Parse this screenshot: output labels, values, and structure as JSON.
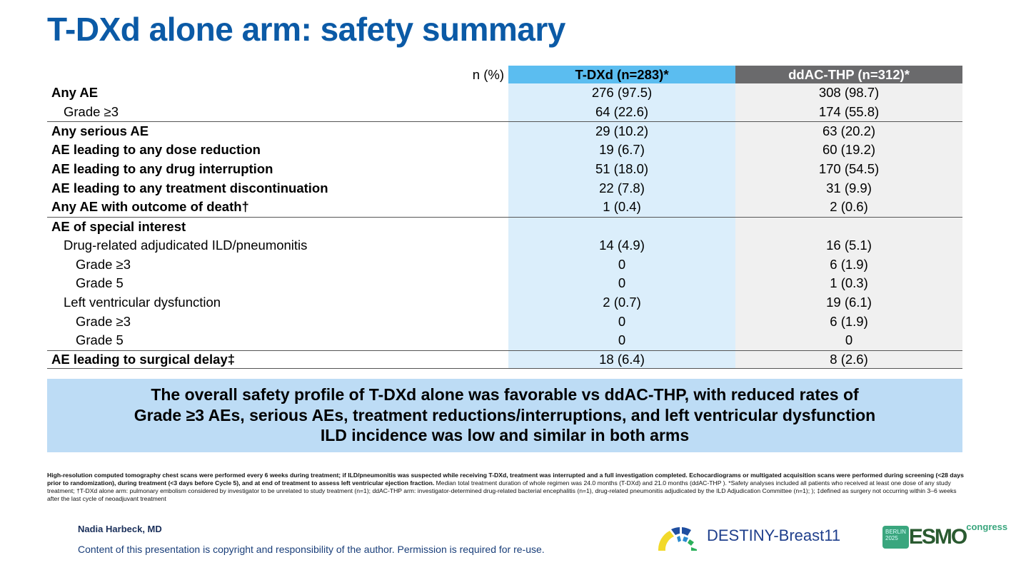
{
  "title": "T-DXd alone arm: safety summary",
  "table": {
    "header": {
      "label": "n (%)",
      "col1": "T-DXd (n=283)*",
      "col2": "ddAC-THP (n=312)*"
    },
    "rows": [
      {
        "label": "Any AE",
        "col1": "276 (97.5)",
        "col2": "308 (98.7)"
      },
      {
        "label": "Grade ≥3",
        "col1": "64 (22.6)",
        "col2": "174 (55.8)"
      },
      {
        "label": "Any serious AE",
        "col1": "29 (10.2)",
        "col2": "63 (20.2)"
      },
      {
        "label": "AE leading to any dose reduction",
        "col1": "19 (6.7)",
        "col2": "60 (19.2)"
      },
      {
        "label": "AE leading to any drug interruption",
        "col1": "51 (18.0)",
        "col2": "170 (54.5)"
      },
      {
        "label": "AE leading to any treatment discontinuation",
        "col1": "22 (7.8)",
        "col2": "31 (9.9)"
      },
      {
        "label": "Any AE with outcome of death†",
        "col1": "1 (0.4)",
        "col2": "2 (0.6)"
      },
      {
        "label": "AE of special interest",
        "col1": "",
        "col2": ""
      },
      {
        "label": "Drug-related adjudicated ILD/pneumonitis",
        "col1": "14 (4.9)",
        "col2": "16 (5.1)"
      },
      {
        "label": "Grade ≥3",
        "col1": "0",
        "col2": "6 (1.9)"
      },
      {
        "label": "Grade 5",
        "col1": "0",
        "col2": "1 (0.3)"
      },
      {
        "label": "Left ventricular dysfunction",
        "col1": "2 (0.7)",
        "col2": "19 (6.1)"
      },
      {
        "label": "Grade ≥3",
        "col1": "0",
        "col2": "6 (1.9)"
      },
      {
        "label": "Grade 5",
        "col1": "0",
        "col2": "0"
      },
      {
        "label": "AE leading to surgical delay‡",
        "col1": "18 (6.4)",
        "col2": "8 (2.6)"
      }
    ]
  },
  "banner": {
    "line1": "The overall safety profile of T-DXd alone was favorable vs ddAC-THP, with reduced rates of",
    "line2": "Grade ≥3 AEs, serious AEs, treatment reductions/interruptions, and left ventricular dysfunction",
    "line3": "ILD incidence was low and similar in both arms"
  },
  "footnote": {
    "bold": "High-resolution computed tomography chest scans were performed every 6 weeks during treatment; if ILD/pneumonitis was suspected while receiving T-DXd, treatment was interrupted and a full investigation completed. Echocardiograms or multigated acquisition scans were performed during screening (<28 days prior to randomization), during treatment (<3 days before Cycle 5), and at end of treatment to assess left ventricular ejection fraction.",
    "normal": " Median total treatment duration of whole regimen was 24.0 months (T-DXd) and 21.0 months (ddAC-THP ). *Safety analyses included all patients who received at least one dose of any study treatment; †T-DXd alone arm: pulmonary embolism considered by investigator to be unrelated to study treatment (n=1); ddAC-THP arm: investigator-determined drug-related bacterial encephalitis (n=1), drug-related pneumonitis adjudicated by the ILD Adjudication Committee (n=1); ); ‡defined as surgery not occurring within 3–6 weeks after the last cycle of neoadjuvant treatment"
  },
  "author": "Nadia Harbeck, MD",
  "copyright": "Content of this presentation is copyright and responsibility of the author. Permission is required for re-use.",
  "logos": {
    "destiny": "DESTINY-Breast11",
    "berlin": "BERLIN",
    "year": "2025",
    "esmo": "ESMO",
    "congress": "congress"
  }
}
